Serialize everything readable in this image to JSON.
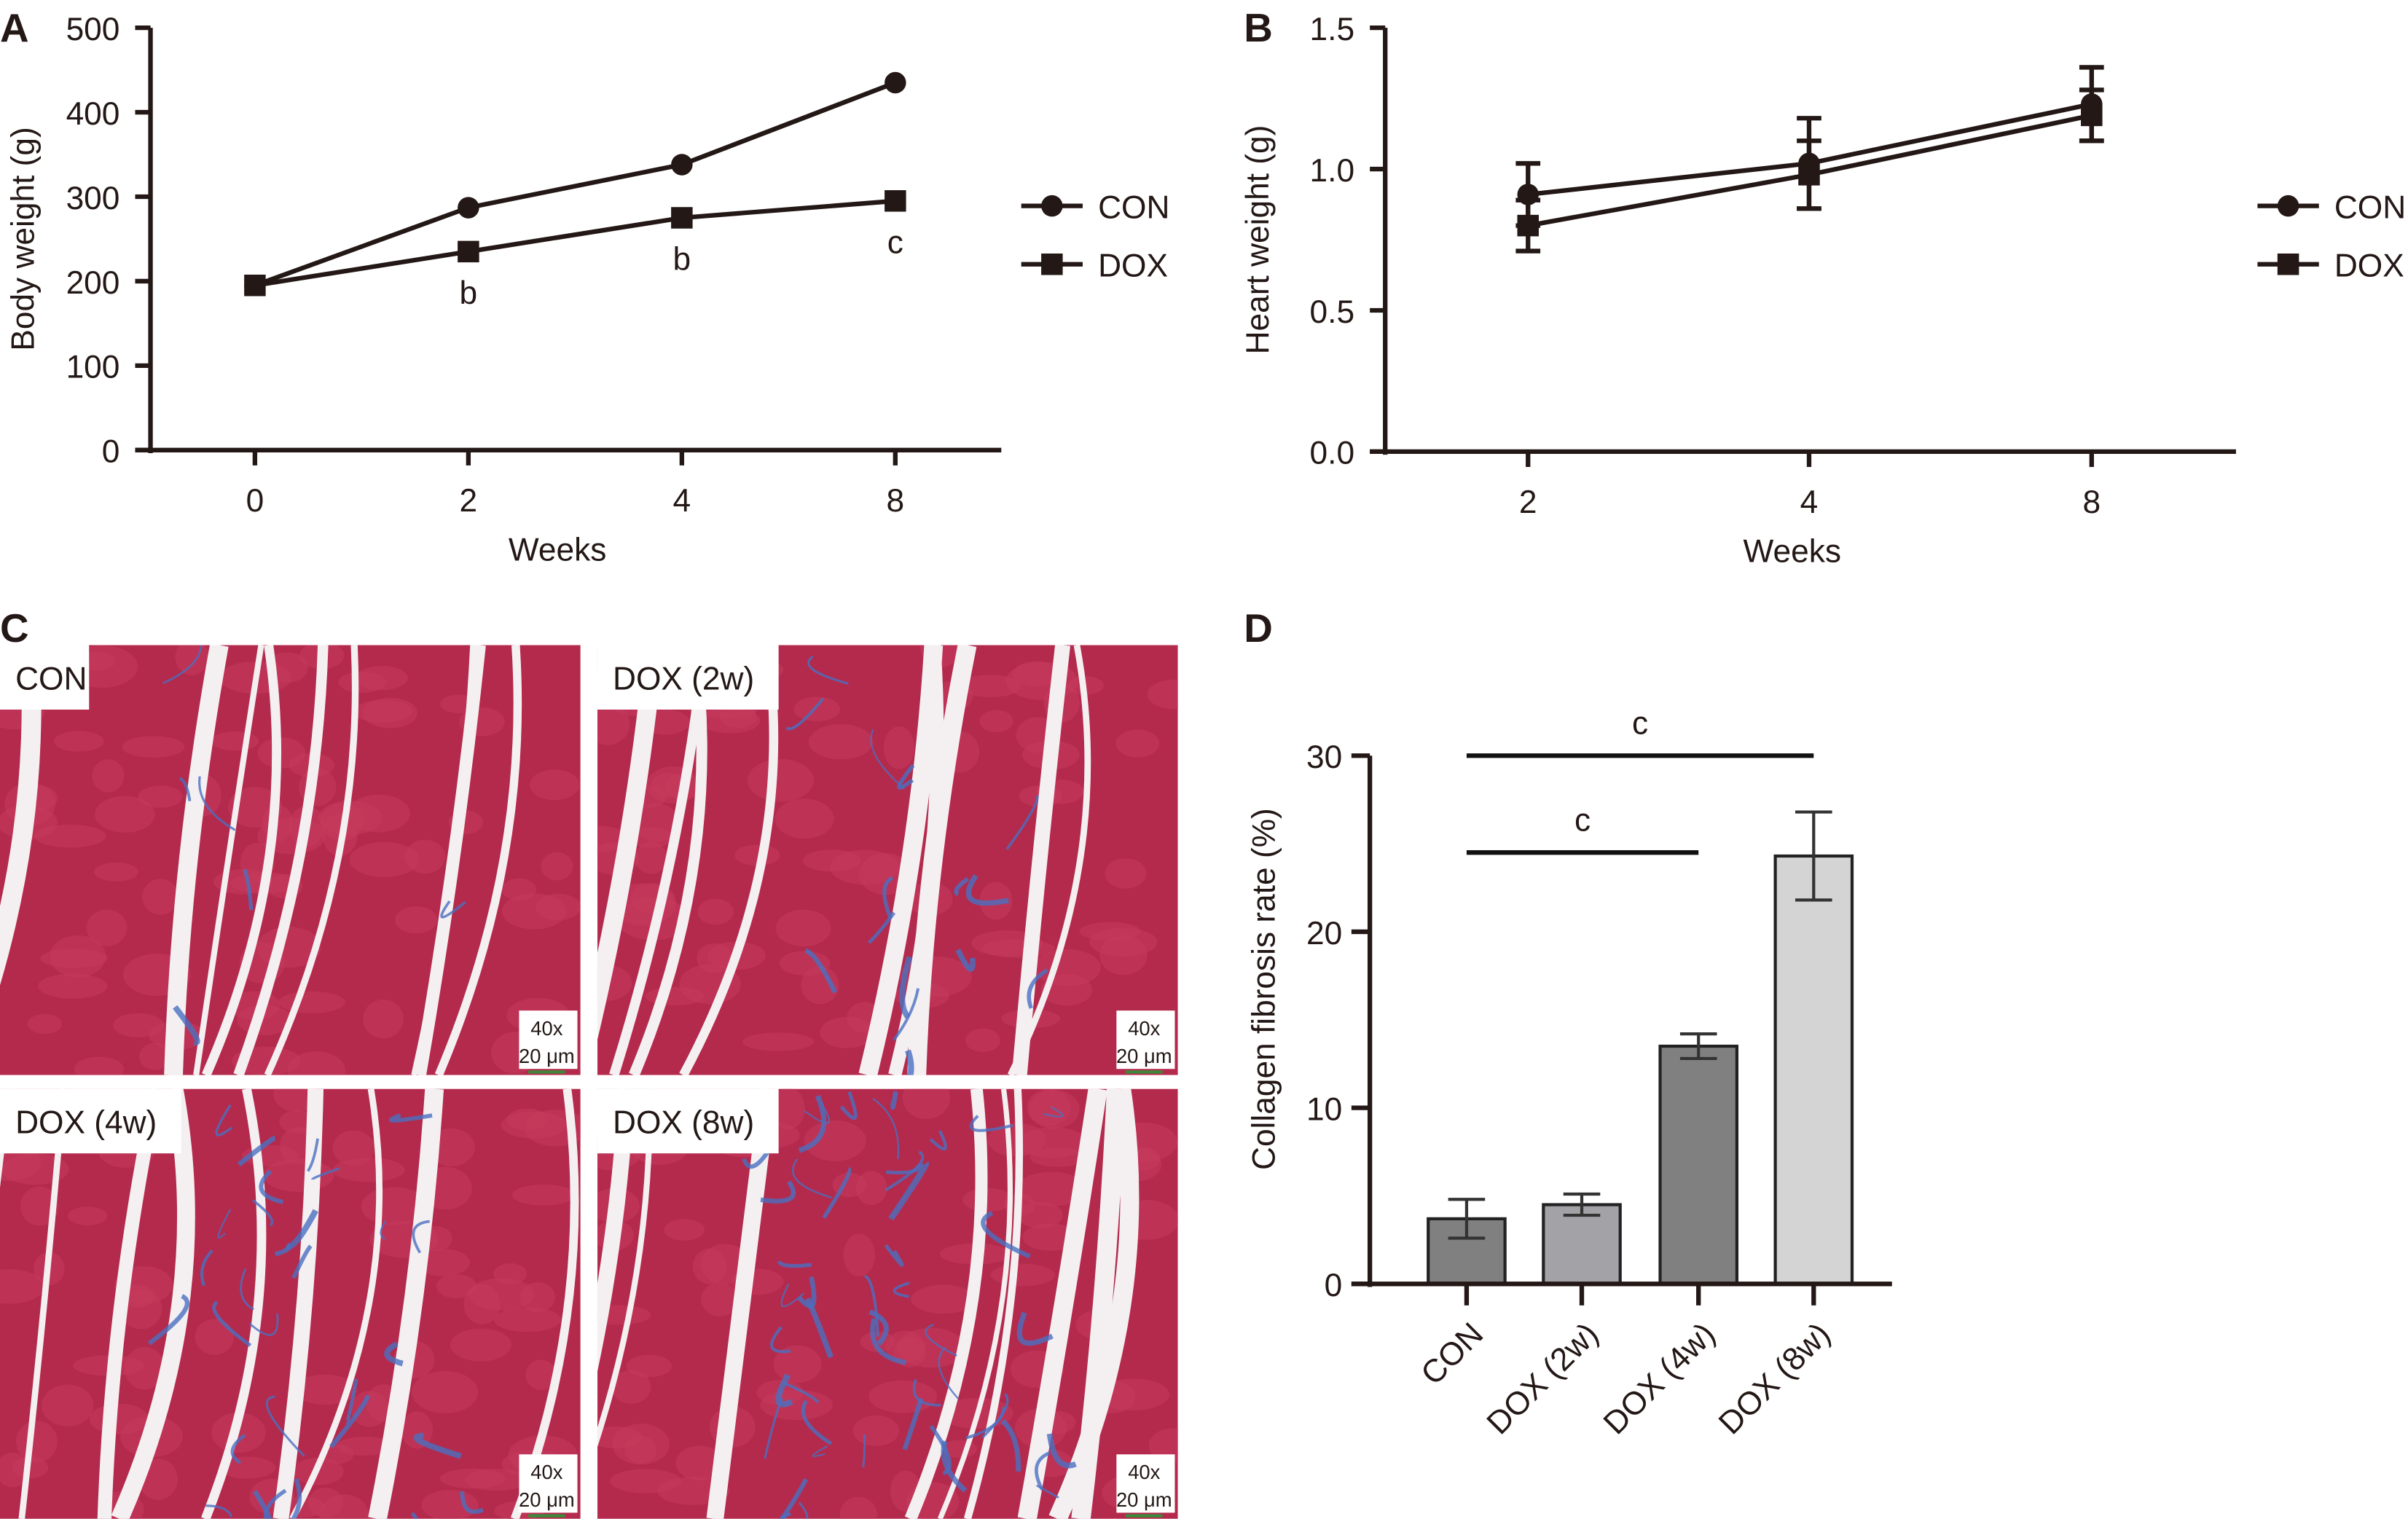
{
  "chart_data": [
    {
      "panel": "A",
      "type": "line",
      "xlabel": "Weeks",
      "ylabel": "Body weight (g)",
      "categories": [
        "0",
        "2",
        "4",
        "8"
      ],
      "ylim": [
        0,
        500
      ],
      "yticks": [
        "0",
        "100",
        "200",
        "300",
        "400",
        "500"
      ],
      "series": [
        {
          "name": "CON",
          "marker": "circle",
          "values": [
            195,
            287,
            338,
            435
          ]
        },
        {
          "name": "DOX",
          "marker": "square",
          "values": [
            195,
            235,
            275,
            295
          ]
        }
      ],
      "annotations": [
        {
          "x": "2",
          "text": "b"
        },
        {
          "x": "4",
          "text": "b"
        },
        {
          "x": "8",
          "text": "c"
        }
      ],
      "legend": "right"
    },
    {
      "panel": "B",
      "type": "line",
      "xlabel": "Weeks",
      "ylabel": "Heart weight (g)",
      "categories": [
        "2",
        "4",
        "8"
      ],
      "ylim": [
        0,
        1.5
      ],
      "yticks": [
        "0.0",
        "0.5",
        "1.0",
        "1.5"
      ],
      "series": [
        {
          "name": "CON",
          "marker": "circle",
          "values": [
            0.91,
            1.02,
            1.23
          ],
          "error": [
            0.11,
            0.16,
            0.13
          ]
        },
        {
          "name": "DOX",
          "marker": "square",
          "values": [
            0.8,
            0.98,
            1.19
          ],
          "error": [
            0.09,
            0.12,
            0.09
          ]
        }
      ],
      "legend": "right"
    },
    {
      "panel": "D",
      "type": "bar",
      "ylabel": "Collagen fibrosis rate (%)",
      "categories": [
        "CON",
        "DOX (2w)",
        "DOX (4w)",
        "DOX (8w)"
      ],
      "values": [
        3.7,
        4.5,
        13.5,
        24.3
      ],
      "error": [
        1.1,
        0.6,
        0.7,
        2.5
      ],
      "colors": [
        "#808080",
        "#a3a3a7",
        "#808080",
        "#d4d4d4"
      ],
      "ylim": [
        0,
        30
      ],
      "yticks": [
        "0",
        "10",
        "20",
        "30"
      ],
      "significance": [
        {
          "from": "CON",
          "to": "DOX (8w)",
          "level": 30,
          "text": "c"
        },
        {
          "from": "CON",
          "to": "DOX (4w)",
          "level": 24.5,
          "text": "c"
        }
      ]
    }
  ],
  "panel_c": {
    "label": "C",
    "images": [
      {
        "title": "CON",
        "magnification": "40x",
        "scale_bar": "20 μm",
        "fibrosis": 0.1
      },
      {
        "title": "DOX (2w)",
        "magnification": "40x",
        "scale_bar": "20 μm",
        "fibrosis": 0.25
      },
      {
        "title": "DOX (4w)",
        "magnification": "40x",
        "scale_bar": "20 μm",
        "fibrosis": 0.5
      },
      {
        "title": "DOX (8w)",
        "magnification": "40x",
        "scale_bar": "20 μm",
        "fibrosis": 0.8
      }
    ]
  },
  "panel_labels": {
    "a": "A",
    "b": "B",
    "c": "C",
    "d": "D"
  },
  "colors": {
    "ink": "#231815",
    "muscle": "#b42a4c",
    "collagen": "#4a6fc0"
  }
}
